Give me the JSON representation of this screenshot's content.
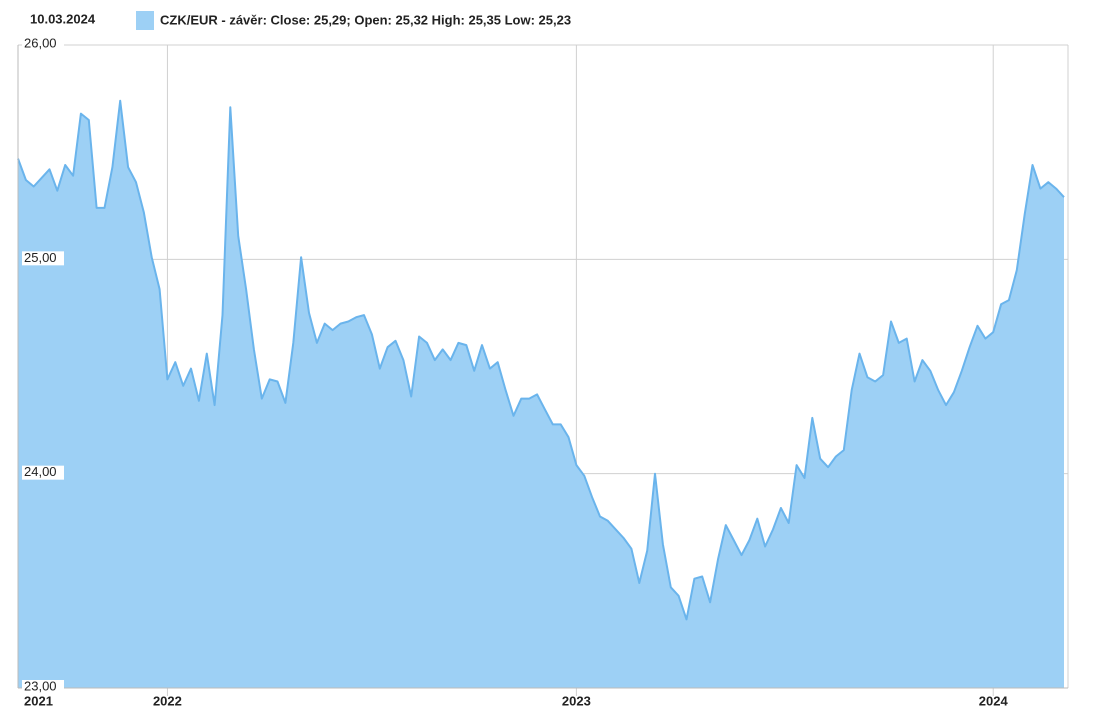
{
  "chart_data": {
    "type": "area",
    "date": "10.03.2024",
    "categories": [
      "2021",
      null,
      null,
      null,
      null,
      null,
      null,
      null,
      null,
      null,
      null,
      null,
      null,
      null,
      null,
      null,
      null,
      null,
      null,
      "2022",
      null,
      null,
      null,
      null,
      null,
      null,
      null,
      null,
      null,
      null,
      null,
      null,
      null,
      null,
      null,
      null,
      null,
      null,
      null,
      null,
      null,
      null,
      null,
      null,
      null,
      null,
      null,
      null,
      null,
      null,
      null,
      null,
      null,
      null,
      null,
      null,
      null,
      null,
      null,
      null,
      null,
      null,
      null,
      null,
      null,
      null,
      null,
      null,
      null,
      null,
      null,
      "2023",
      null,
      null,
      null,
      null,
      null,
      null,
      null,
      null,
      null,
      null,
      null,
      null,
      null,
      null,
      null,
      null,
      null,
      null,
      null,
      null,
      null,
      null,
      null,
      null,
      null,
      null,
      null,
      null,
      null,
      null,
      null,
      null,
      null,
      null,
      null,
      null,
      null,
      null,
      null,
      null,
      null,
      null,
      null,
      null,
      null,
      null,
      null,
      null,
      null,
      null,
      null,
      null,
      "2024",
      null,
      null,
      null,
      null,
      null,
      null,
      null,
      null,
      null
    ],
    "series": [
      {
        "name": "CZK/EUR - závěr: Close: 25,29; Open: 25,32 High: 25,35 Low: 25,23",
        "color": "#9dd0f5",
        "line_color": "#6ab4ec",
        "values": [
          25.47,
          25.37,
          25.34,
          25.38,
          25.42,
          25.32,
          25.44,
          25.39,
          25.68,
          25.65,
          25.24,
          25.24,
          25.43,
          25.74,
          25.43,
          25.36,
          25.22,
          25.01,
          24.86,
          24.44,
          24.52,
          24.41,
          24.49,
          24.34,
          24.56,
          24.32,
          24.74,
          25.71,
          25.11,
          24.86,
          24.58,
          24.35,
          24.44,
          24.43,
          24.33,
          24.61,
          25.01,
          24.75,
          24.61,
          24.7,
          24.67,
          24.7,
          24.71,
          24.73,
          24.74,
          24.65,
          24.49,
          24.59,
          24.62,
          24.53,
          24.36,
          24.64,
          24.61,
          24.53,
          24.58,
          24.53,
          24.61,
          24.6,
          24.48,
          24.6,
          24.49,
          24.52,
          24.39,
          24.27,
          24.35,
          24.35,
          24.37,
          24.3,
          24.23,
          24.23,
          24.17,
          24.04,
          23.99,
          23.89,
          23.8,
          23.78,
          23.74,
          23.7,
          23.65,
          23.49,
          23.64,
          24.0,
          23.67,
          23.47,
          23.43,
          23.32,
          23.51,
          23.52,
          23.4,
          23.6,
          23.76,
          23.69,
          23.62,
          23.69,
          23.79,
          23.66,
          23.74,
          23.84,
          23.77,
          24.04,
          23.98,
          24.26,
          24.07,
          24.03,
          24.08,
          24.11,
          24.39,
          24.56,
          24.45,
          24.43,
          24.46,
          24.71,
          24.61,
          24.63,
          24.43,
          24.53,
          24.48,
          24.39,
          24.32,
          24.38,
          24.48,
          24.59,
          24.69,
          24.63,
          24.66,
          24.79,
          24.81,
          24.95,
          25.21,
          25.44,
          25.33,
          25.36,
          25.33,
          25.29
        ]
      }
    ],
    "ylim": [
      23,
      26
    ],
    "yticks": [
      {
        "value": 23,
        "label": "23,00"
      },
      {
        "value": 24,
        "label": "24,00"
      },
      {
        "value": 25,
        "label": "25,00"
      },
      {
        "value": 26,
        "label": "26,00"
      }
    ],
    "grid": true
  }
}
